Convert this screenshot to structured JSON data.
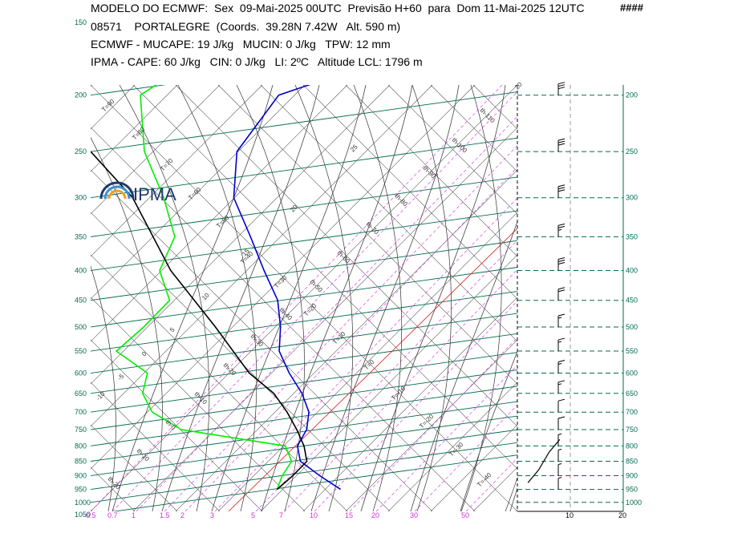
{
  "header": {
    "line1": "MODELO DO ECMWF:  Sex  09-Mai-2025 00UTC  Previsão H+60  para  Dom 11-Mai-2025 12UTC",
    "marker": "####",
    "line2": "08571    PORTALEGRE  (Coords.  39.28N 7.42W   Alt. 590 m)",
    "line3": "ECMWF - MUCAPE: 19 J/kg   MUCIN: 0 J/kg   TPW: 12 mm",
    "line4": "IPMA - CAPE: 60 J/kg   CIN: 0 J/kg   LI: 2ºC   Altitude LCL: 1796 m"
  },
  "logo": {
    "text": "IPMA"
  },
  "colors": {
    "isobar": "#006b4f",
    "dry_adiabat": "#333333",
    "isotherm": "#333333",
    "mixing_ratio": "#e040e0",
    "temperature": "#0000cc",
    "dewpoint": "#00ee00",
    "parcel": "#000000",
    "zero_isotherm": "#e03030",
    "wind_panel": "#006b4f",
    "magenta_axis": "#d030d0"
  },
  "chart_data": {
    "type": "line",
    "pressure_ticks_left": [
      "150",
      "200",
      "250",
      "300",
      "350",
      "400",
      "450",
      "500",
      "550",
      "600",
      "650",
      "700",
      "750",
      "800",
      "850",
      "900",
      "950",
      "1000",
      "1050"
    ],
    "pressure_ticks_right": [
      "200",
      "250",
      "300",
      "350",
      "400",
      "450",
      "500",
      "550",
      "600",
      "650",
      "700",
      "750",
      "800",
      "850",
      "900",
      "950",
      "1000"
    ],
    "mixing_ratio_ticks": [
      "0.5",
      "0.7",
      "1",
      "1.5",
      "2",
      "3",
      "5",
      "7",
      "10",
      "15",
      "20",
      "30",
      "50"
    ],
    "wind_axis_ticks": [
      "10",
      "20"
    ],
    "isotherm_labels": [
      "T=90",
      "T=80",
      "T=70",
      "T=60",
      "T=50",
      "T=40",
      "T=30",
      "T=20",
      "T=10",
      "T=0",
      "T=-10",
      "T=-20",
      "T=-30",
      "T=-40"
    ],
    "dry_adiabat_labels": [
      "th-110",
      "th-100",
      "th-90",
      "th-80",
      "th-70",
      "th-60",
      "th-50",
      "th-40",
      "th-30",
      "th-20",
      "th-10",
      "th-0",
      "th-10",
      "th-20"
    ],
    "moist_adiabat_labels": [
      "25",
      "20",
      "15",
      "10",
      "5",
      "0",
      "-5",
      "-10",
      "20"
    ],
    "series": [
      {
        "name": "Temperature",
        "points": [
          {
            "p": 950,
            "x": 424.6
          },
          {
            "p": 900,
            "x": 398.6
          },
          {
            "p": 850,
            "x": 374.5
          },
          {
            "p": 800,
            "x": 370.8
          },
          {
            "p": 750,
            "x": 382.3
          },
          {
            "p": 700,
            "x": 385.1
          },
          {
            "p": 650,
            "x": 376.5
          },
          {
            "p": 600,
            "x": 360.6
          },
          {
            "p": 550,
            "x": 348.1
          },
          {
            "p": 500,
            "x": 349.7
          },
          {
            "p": 450,
            "x": 346.2
          },
          {
            "p": 400,
            "x": 329.2
          },
          {
            "p": 350,
            "x": 312.3
          },
          {
            "p": 300,
            "x": 291.4
          },
          {
            "p": 250,
            "x": 295.4
          },
          {
            "p": 200,
            "x": 347.5
          },
          {
            "p": 180,
            "x": 445.0
          }
        ]
      },
      {
        "name": "Dewpoint",
        "points": [
          {
            "p": 950,
            "x": 345.4
          },
          {
            "p": 900,
            "x": 351.9
          },
          {
            "p": 850,
            "x": 363.5
          },
          {
            "p": 800,
            "x": 355.8
          },
          {
            "p": 750,
            "x": 226.0
          },
          {
            "p": 700,
            "x": 189.8
          },
          {
            "p": 650,
            "x": 177.8
          },
          {
            "p": 600,
            "x": 183.8
          },
          {
            "p": 550,
            "x": 145.1
          },
          {
            "p": 500,
            "x": 179.1
          },
          {
            "p": 450,
            "x": 211.5
          },
          {
            "p": 400,
            "x": 199.0
          },
          {
            "p": 350,
            "x": 217.9
          },
          {
            "p": 300,
            "x": 204.1
          },
          {
            "p": 250,
            "x": 180.0
          },
          {
            "p": 200,
            "x": 175.0
          },
          {
            "p": 180,
            "x": 226.0
          }
        ]
      },
      {
        "name": "Parcel",
        "points": [
          {
            "p": 950,
            "x": 345.4
          },
          {
            "p": 900,
            "x": 365.0
          },
          {
            "p": 850,
            "x": 382.6
          },
          {
            "p": 800,
            "x": 379.0
          },
          {
            "p": 750,
            "x": 370.0
          },
          {
            "p": 700,
            "x": 357.9
          },
          {
            "p": 650,
            "x": 341.4
          },
          {
            "p": 600,
            "x": 310.7
          },
          {
            "p": 500,
            "x": 268.6
          },
          {
            "p": 400,
            "x": 212.8
          },
          {
            "p": 300,
            "x": 165.4
          },
          {
            "p": 250,
            "x": 113.0
          }
        ]
      }
    ],
    "wind_barbs": [
      {
        "p": 200,
        "kt": 30
      },
      {
        "p": 250,
        "kt": 30
      },
      {
        "p": 300,
        "kt": 30
      },
      {
        "p": 350,
        "kt": 25
      },
      {
        "p": 400,
        "kt": 30
      },
      {
        "p": 450,
        "kt": 20
      },
      {
        "p": 500,
        "kt": 15
      },
      {
        "p": 550,
        "kt": 15
      },
      {
        "p": 600,
        "kt": 15
      },
      {
        "p": 650,
        "kt": 15
      },
      {
        "p": 700,
        "kt": 10
      },
      {
        "p": 750,
        "kt": 10
      },
      {
        "p": 800,
        "kt": 5
      },
      {
        "p": 850,
        "kt": 5
      },
      {
        "p": 900,
        "kt": 5
      },
      {
        "p": 950,
        "kt": 5
      }
    ],
    "wind_profile_line": [
      {
        "p": 925,
        "v": 2
      },
      {
        "p": 880,
        "v": 4
      },
      {
        "p": 820,
        "v": 6
      },
      {
        "p": 780,
        "v": 8
      }
    ],
    "grid": true
  }
}
